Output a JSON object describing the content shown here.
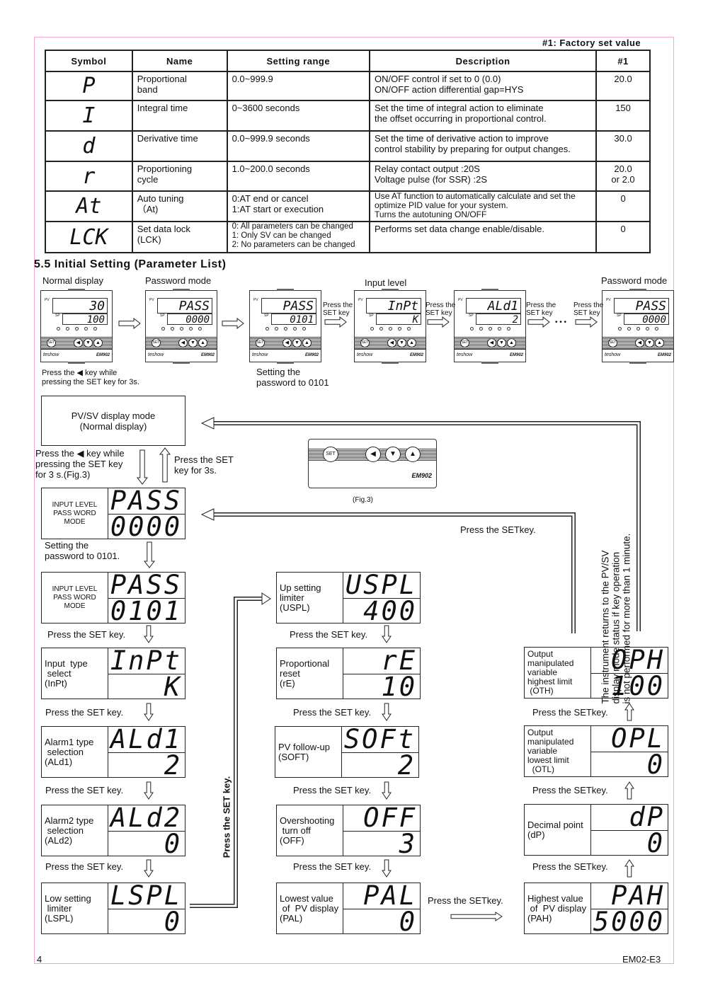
{
  "factory_note": "#1: Factory set value",
  "table": {
    "headers": [
      "Symbol",
      "Name",
      "Setting range",
      "Description",
      "#1"
    ],
    "rows": [
      {
        "symbol": "P",
        "name": "Proportional\nband",
        "range": "0.0~999.9",
        "desc": "ON/OFF control if set to 0 (0.0)\nON/OFF action differential gap=HYS",
        "value": "20.0"
      },
      {
        "symbol": "I",
        "name": "Integral time",
        "range": "0~3600 seconds",
        "desc": "Set the time of integral action to eliminate\nthe offset occurring in proportional control.",
        "value": "150"
      },
      {
        "symbol": "d",
        "name": "Derivative time",
        "range": "0.0~999.9 seconds",
        "desc": "Set the time of derivative action to improve\ncontrol stability by preparing for output changes.",
        "value": "30.0"
      },
      {
        "symbol": "r",
        "name": "Proportioning\ncycle",
        "range": "1.0~200.0 seconds",
        "desc": "Relay contact output :20S\nVoltage pulse (for SSR) :2S",
        "value": "20.0\nor 2.0"
      },
      {
        "symbol": "At",
        "name": "Auto tuning\n（At)",
        "range": "0:AT end or cancel\n1:AT start or execution",
        "desc": "Use AT function to automatically calculate and set the\n optimize PID value for your system.\nTurns the autotuning ON/OFF",
        "value": "0"
      },
      {
        "symbol": "LCK",
        "name": "Set data lock\n(LCK)",
        "range": "0: All parameters can be changed\n1: Only SV can be changed\n2: No parameters can be changed",
        "desc": "Performs set data change enable/disable.",
        "value": "0"
      }
    ]
  },
  "section_title": "5.5  Initial Setting (Parameter List)",
  "strip": {
    "labels": [
      "Normal display",
      "Password mode",
      "Input level",
      "Password mode"
    ],
    "devices": [
      {
        "pv": "30",
        "sv": "100"
      },
      {
        "pv": "PASS",
        "sv": "0000"
      },
      {
        "pv": "PASS",
        "sv": "0101"
      },
      {
        "pv": "InPt",
        "sv": "K"
      },
      {
        "pv": "ALd1",
        "sv": "2"
      },
      {
        "pv": "PASS",
        "sv": "0000"
      }
    ],
    "device_brand": "teshow",
    "device_model": "EM902",
    "set_key": "SET",
    "pv_tag": "PV",
    "sv_tag": "SP",
    "press_set": "Press the\nSET key",
    "ellipsis": "• • •",
    "note_left": "Press the ◀ key while\npressing the SET key for 3s.",
    "note_mid": "Setting the\npassword to 0101"
  },
  "flow": {
    "normal_box": "PV/SV display mode\n(Normal display)",
    "enter_note": "Press the ◀ key while\npressing the SET key\nfor 3 s.(Fig.3)",
    "return_note": "Press the SET\nkey for 3s.",
    "fig_label": "(Fig.3)",
    "password_note": "Setting the\npassword to 0101.",
    "press_set": "Press the SET key.",
    "press_set_right": "Press the SETkey.",
    "vertical_press": "Press the SET key.",
    "timeout_note": "The instrument returns to the PV/SV\ndisplay mode status if key operation\nis not performed for more than 1 minute.",
    "boxes": [
      {
        "label": "INPUT LEVEL\nPASS WORD\nMODE",
        "top": "PASS",
        "bottom": "0000"
      },
      {
        "label": "INPUT LEVEL\nPASS WORD\nMODE",
        "top": "PASS",
        "bottom": "0101"
      },
      {
        "label": "Input  type\n select\n(InPt)",
        "top": "InPt",
        "bottom": "K"
      },
      {
        "label": "Alarm1 type\n selection\n(ALd1)",
        "top": "ALd1",
        "bottom": "2"
      },
      {
        "label": "Alarm2 type\n selection\n(ALd2)",
        "top": "ALd2",
        "bottom": "0"
      },
      {
        "label": "Low setting\n limiter\n(LSPL)",
        "top": "LSPL",
        "bottom": "0"
      },
      {
        "label": "Up setting\nlimiter\n(USPL)",
        "top": "USPL",
        "bottom": "400"
      },
      {
        "label": "Proportional\nreset\n(rE)",
        "top": "rE",
        "bottom": "10"
      },
      {
        "label": "PV follow-up\n(SOFT)",
        "top": "SOFt",
        "bottom": "2"
      },
      {
        "label": "Overshooting\n turn off\n(OFF)",
        "top": "OFF",
        "bottom": "3"
      },
      {
        "label": "Lowest value\n of  PV display\n(PAL)",
        "top": "PAL",
        "bottom": "0"
      },
      {
        "label": "Output\nmanipulated\nvariable\nhighest limit\n (OTH)",
        "top": "OPH",
        "bottom": "100"
      },
      {
        "label": "Output\nmanipulated\nvariable\nlowest limit\n  (OTL)",
        "top": "OPL",
        "bottom": "0"
      },
      {
        "label": "Decimal point\n(dP)",
        "top": "dP",
        "bottom": "0"
      },
      {
        "label": "Highest value\n of  PV display\n(PAH)",
        "top": "PAH",
        "bottom": "5000"
      }
    ]
  },
  "footer": {
    "page": "4",
    "doc": "EM02-E3"
  }
}
